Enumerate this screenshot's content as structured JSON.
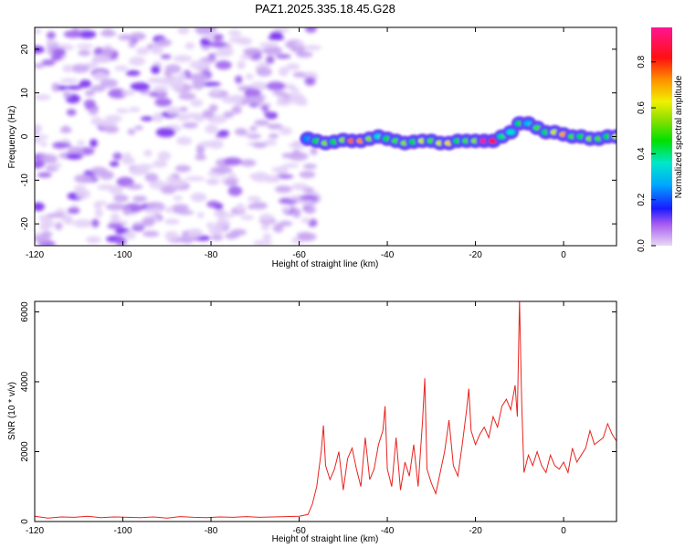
{
  "chart_data": [
    {
      "type": "heatmap",
      "title": "PAZ1.2025.335.18.45.G28",
      "xlabel": "Height of straight line (km)",
      "ylabel": "Frequency (Hz)",
      "xlim": [
        -120,
        12
      ],
      "ylim": [
        -25,
        25
      ],
      "xticks": [
        -120,
        -100,
        -80,
        -60,
        -40,
        -20,
        0
      ],
      "yticks": [
        -20,
        -10,
        0,
        10,
        20
      ],
      "colorbar": {
        "label": "Normalized spectral amplitude",
        "range": [
          0,
          0.95
        ],
        "ticks": [
          0.0,
          0.2,
          0.4,
          0.6,
          0.8
        ]
      },
      "noise_region_km": [
        -120,
        -58
      ],
      "ridge": {
        "x": [
          -58,
          -56,
          -54,
          -52,
          -50,
          -48,
          -46,
          -44,
          -42,
          -40,
          -38,
          -36,
          -34,
          -32,
          -30,
          -28,
          -26,
          -24,
          -22,
          -20,
          -18,
          -16,
          -14,
          -12,
          -10,
          -8,
          -6,
          -4,
          -2,
          0,
          2,
          4,
          6,
          8,
          10,
          12
        ],
        "freq": [
          -0.5,
          -1.0,
          -1.5,
          -1.2,
          -0.8,
          -1.0,
          -1.0,
          -0.5,
          0.0,
          -0.5,
          -1.0,
          -1.5,
          -1.2,
          -1.0,
          -1.0,
          -1.5,
          -1.5,
          -1.0,
          -1.0,
          -1.0,
          -1.0,
          -1.0,
          0.0,
          1.0,
          3.0,
          3.0,
          2.0,
          1.0,
          1.0,
          0.5,
          0.0,
          0.0,
          -0.5,
          -0.5,
          0.0,
          0.0
        ],
        "amplitude": [
          0.25,
          0.45,
          0.55,
          0.45,
          0.55,
          0.75,
          0.72,
          0.55,
          0.35,
          0.45,
          0.5,
          0.55,
          0.45,
          0.6,
          0.5,
          0.6,
          0.65,
          0.45,
          0.5,
          0.55,
          0.95,
          0.85,
          0.4,
          0.35,
          0.45,
          0.3,
          0.5,
          0.45,
          0.6,
          0.7,
          0.5,
          0.45,
          0.55,
          0.5,
          0.45,
          0.6
        ]
      }
    },
    {
      "type": "line",
      "xlabel": "Height of straight line (km)",
      "ylabel": "SNR (10 * v/v)",
      "xlim": [
        -120,
        12
      ],
      "ylim": [
        0,
        6300
      ],
      "xticks": [
        -120,
        -100,
        -80,
        -60,
        -40,
        -20,
        0
      ],
      "yticks": [
        0,
        2000,
        4000,
        6000
      ],
      "series": [
        {
          "name": "SNR",
          "color": "#e8231e",
          "x": [
            -120,
            -117,
            -114,
            -111,
            -108,
            -105,
            -102,
            -99,
            -96,
            -93,
            -90,
            -87,
            -84,
            -81,
            -78,
            -75,
            -72,
            -69,
            -66,
            -63,
            -60,
            -58,
            -57,
            -56,
            -55,
            -54.5,
            -54,
            -53,
            -52,
            -51,
            -50,
            -49,
            -48,
            -47,
            -46,
            -45,
            -44,
            -43,
            -42,
            -41,
            -40.5,
            -40,
            -39,
            -38,
            -37,
            -36,
            -35,
            -34,
            -33,
            -32,
            -31.5,
            -31,
            -30,
            -29,
            -28,
            -27,
            -26,
            -25,
            -24,
            -23,
            -22,
            -21.5,
            -21,
            -20,
            -19,
            -18,
            -17,
            -16,
            -15,
            -14,
            -13,
            -12,
            -11,
            -10.5,
            -10,
            -9.5,
            -9,
            -8,
            -7,
            -6,
            -5,
            -4,
            -3,
            -2,
            -1,
            0,
            1,
            2,
            3,
            4,
            5,
            6,
            7,
            8,
            9,
            10,
            11,
            12
          ],
          "y": [
            150,
            100,
            130,
            120,
            150,
            110,
            130,
            120,
            110,
            130,
            100,
            140,
            120,
            110,
            130,
            120,
            140,
            120,
            130,
            140,
            150,
            200,
            500,
            1000,
            2000,
            2750,
            1600,
            1200,
            1500,
            2000,
            900,
            1800,
            2100,
            1500,
            1000,
            2400,
            1200,
            1500,
            2200,
            2600,
            3300,
            1500,
            1000,
            2400,
            900,
            1700,
            1300,
            2200,
            1000,
            2900,
            4100,
            1500,
            1100,
            800,
            1400,
            2000,
            2900,
            1600,
            1300,
            2200,
            3200,
            3800,
            2600,
            2200,
            2500,
            2700,
            2400,
            3000,
            2700,
            3300,
            3500,
            3200,
            3900,
            3000,
            6350,
            3400,
            1400,
            1900,
            1600,
            2000,
            1600,
            1400,
            1900,
            1600,
            1500,
            1700,
            1400,
            2100,
            1700,
            1900,
            2100,
            2600,
            2200,
            2300,
            2400,
            2800,
            2500,
            2300
          ]
        }
      ]
    }
  ]
}
